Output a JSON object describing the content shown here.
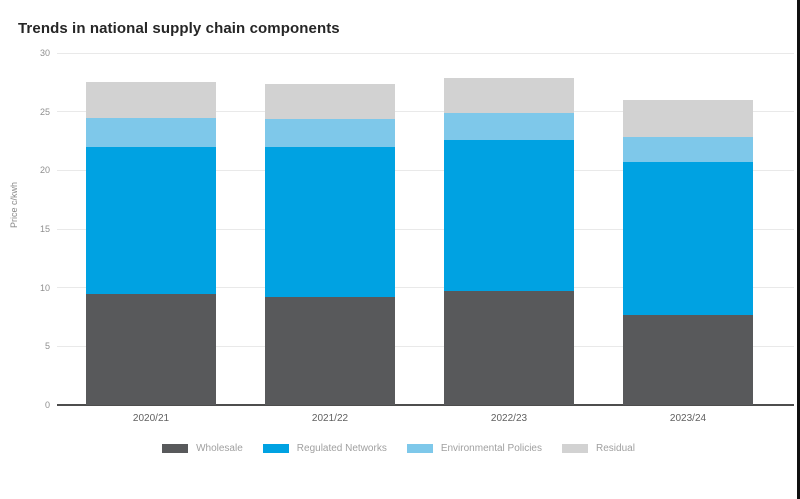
{
  "page": {
    "title": "Trends in national supply chain components"
  },
  "chart_data": {
    "type": "bar",
    "stacked": true,
    "title": "Trends in national supply chain components",
    "xlabel": "",
    "ylabel": "Price c/kwh",
    "ylim": [
      0,
      30
    ],
    "yticks": [
      0,
      5,
      10,
      15,
      20,
      25,
      30
    ],
    "grid": "horizontal",
    "legend_position": "bottom",
    "categories": [
      "2020/21",
      "2021/22",
      "2022/23",
      "2023/24"
    ],
    "series": [
      {
        "name": "Wholesale",
        "color": "#58595b",
        "values": [
          9.5,
          9.2,
          9.7,
          7.7
        ]
      },
      {
        "name": "Regulated Networks",
        "color": "#00a2e2",
        "values": [
          12.5,
          12.8,
          12.9,
          13.0
        ]
      },
      {
        "name": "Environmental Policies",
        "color": "#7ec8ea",
        "values": [
          2.5,
          2.4,
          2.3,
          2.1
        ]
      },
      {
        "name": "Residual",
        "color": "#d2d2d2",
        "values": [
          3.0,
          3.0,
          3.0,
          3.2
        ]
      }
    ],
    "stack_totals": [
      27.5,
      27.4,
      27.9,
      26.0
    ]
  }
}
